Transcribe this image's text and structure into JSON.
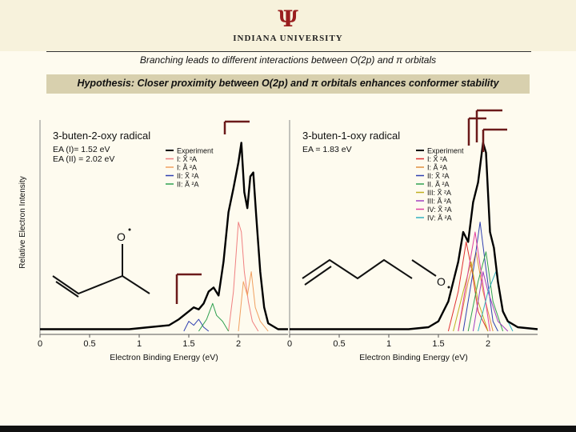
{
  "header": {
    "logo_glyph": "Ψ",
    "university": "INDIANA UNIVERSITY",
    "subtitle": "Branching leads to different interactions between O(2p) and π orbitals",
    "hypothesis": "Hypothesis: Closer proximity between O(2p) and π orbitals enhances conformer stability"
  },
  "colors": {
    "background": "#fefbef",
    "hypothesis_box": "#d8d0ae",
    "brand": "#9a1f1f",
    "bracket": "#6b1a1a"
  },
  "y_axis_label": "Relative Electron Intensity",
  "chart_data": [
    {
      "type": "line",
      "title": "3-buten-2-oxy radical",
      "annotations": [
        "EA (I)= 1.52 eV",
        "EA (II) = 2.02 eV"
      ],
      "xlabel": "Electron Binding Energy (eV)",
      "ylabel": "Relative Electron Intensity",
      "xlim": [
        0,
        2.5
      ],
      "x_ticks": [
        "0",
        "0.5",
        "1",
        "1.5",
        "2"
      ],
      "legend": [
        {
          "label": "Experiment",
          "color": "#000000"
        },
        {
          "label": "I: X̃ ²A",
          "color": "#f08080"
        },
        {
          "label": "I: Ã ²A",
          "color": "#f0a060"
        },
        {
          "label": "II: X̃ ²A",
          "color": "#3040b0"
        },
        {
          "label": "II: Ã ²A",
          "color": "#30a050"
        }
      ],
      "legend_position": "top-right",
      "series": [
        {
          "name": "Experiment",
          "color": "#000000",
          "points": [
            [
              0,
              0.01
            ],
            [
              0.3,
              0.01
            ],
            [
              0.6,
              0.01
            ],
            [
              0.9,
              0.01
            ],
            [
              1.1,
              0.02
            ],
            [
              1.3,
              0.03
            ],
            [
              1.4,
              0.06
            ],
            [
              1.5,
              0.1
            ],
            [
              1.55,
              0.12
            ],
            [
              1.6,
              0.11
            ],
            [
              1.65,
              0.14
            ],
            [
              1.7,
              0.2
            ],
            [
              1.75,
              0.22
            ],
            [
              1.8,
              0.18
            ],
            [
              1.85,
              0.35
            ],
            [
              1.9,
              0.6
            ],
            [
              1.95,
              0.72
            ],
            [
              2.0,
              0.85
            ],
            [
              2.03,
              0.95
            ],
            [
              2.06,
              0.7
            ],
            [
              2.09,
              0.62
            ],
            [
              2.12,
              0.78
            ],
            [
              2.15,
              0.8
            ],
            [
              2.18,
              0.58
            ],
            [
              2.22,
              0.3
            ],
            [
              2.26,
              0.12
            ],
            [
              2.3,
              0.04
            ],
            [
              2.4,
              0.01
            ],
            [
              2.5,
              0.01
            ]
          ]
        },
        {
          "name": "I: X̃ ²A",
          "color": "#f08080",
          "points": [
            [
              1.9,
              0.0
            ],
            [
              1.95,
              0.2
            ],
            [
              2.0,
              0.55
            ],
            [
              2.03,
              0.5
            ],
            [
              2.06,
              0.3
            ],
            [
              2.1,
              0.15
            ],
            [
              2.14,
              0.05
            ],
            [
              2.2,
              0.0
            ]
          ]
        },
        {
          "name": "I: Ã ²A",
          "color": "#f0a060",
          "points": [
            [
              2.0,
              0.0
            ],
            [
              2.05,
              0.25
            ],
            [
              2.09,
              0.18
            ],
            [
              2.13,
              0.3
            ],
            [
              2.17,
              0.12
            ],
            [
              2.22,
              0.05
            ],
            [
              2.3,
              0.0
            ]
          ]
        },
        {
          "name": "II: X̃ ²A",
          "color": "#3040b0",
          "points": [
            [
              1.45,
              0.0
            ],
            [
              1.5,
              0.05
            ],
            [
              1.55,
              0.03
            ],
            [
              1.6,
              0.06
            ],
            [
              1.65,
              0.02
            ],
            [
              1.7,
              0.0
            ]
          ]
        },
        {
          "name": "II: Ã ²A",
          "color": "#30a050",
          "points": [
            [
              1.6,
              0.0
            ],
            [
              1.68,
              0.06
            ],
            [
              1.74,
              0.14
            ],
            [
              1.78,
              0.08
            ],
            [
              1.84,
              0.05
            ],
            [
              1.9,
              0.0
            ]
          ]
        }
      ]
    },
    {
      "type": "line",
      "title": "3-buten-1-oxy radical",
      "annotations": [
        "EA = 1.83 eV"
      ],
      "xlabel": "Electron Binding Energy (eV)",
      "ylabel": "",
      "xlim": [
        0,
        2.5
      ],
      "x_ticks": [
        "0",
        "0.5",
        "1",
        "1.5",
        "2"
      ],
      "legend": [
        {
          "label": "Experiment",
          "color": "#000000"
        },
        {
          "label": "I: X̃ ²A",
          "color": "#e03030"
        },
        {
          "label": "I: Ã ²A",
          "color": "#e09040"
        },
        {
          "label": "II: X̃ ²A",
          "color": "#3040b0"
        },
        {
          "label": "II. Ã ²A",
          "color": "#30a050"
        },
        {
          "label": "III: X̃ ²A",
          "color": "#c0b020"
        },
        {
          "label": "III: Ã ²A",
          "color": "#a040c0"
        },
        {
          "label": "IV: X̃ ²A",
          "color": "#e040a0"
        },
        {
          "label": "IV: Ã ²A",
          "color": "#30b0c0"
        }
      ],
      "legend_position": "top-right",
      "series": [
        {
          "name": "Experiment",
          "color": "#000000",
          "points": [
            [
              0,
              0.01
            ],
            [
              0.5,
              0.01
            ],
            [
              1.0,
              0.01
            ],
            [
              1.2,
              0.01
            ],
            [
              1.4,
              0.02
            ],
            [
              1.5,
              0.05
            ],
            [
              1.6,
              0.15
            ],
            [
              1.7,
              0.35
            ],
            [
              1.75,
              0.5
            ],
            [
              1.8,
              0.45
            ],
            [
              1.85,
              0.65
            ],
            [
              1.9,
              0.75
            ],
            [
              1.95,
              0.95
            ],
            [
              1.98,
              0.9
            ],
            [
              2.02,
              0.5
            ],
            [
              2.06,
              0.42
            ],
            [
              2.1,
              0.25
            ],
            [
              2.15,
              0.1
            ],
            [
              2.2,
              0.05
            ],
            [
              2.3,
              0.02
            ],
            [
              2.5,
              0.01
            ]
          ]
        },
        {
          "name": "I: X̃ ²A",
          "color": "#e03030",
          "points": [
            [
              1.6,
              0.0
            ],
            [
              1.7,
              0.2
            ],
            [
              1.78,
              0.45
            ],
            [
              1.84,
              0.3
            ],
            [
              1.9,
              0.1
            ],
            [
              2.0,
              0.0
            ]
          ]
        },
        {
          "name": "I: Ã ²A",
          "color": "#e09040",
          "points": [
            [
              1.7,
              0.0
            ],
            [
              1.8,
              0.25
            ],
            [
              1.88,
              0.4
            ],
            [
              1.95,
              0.2
            ],
            [
              2.05,
              0.0
            ]
          ]
        },
        {
          "name": "II: X̃ ²A",
          "color": "#3040b0",
          "points": [
            [
              1.75,
              0.0
            ],
            [
              1.85,
              0.3
            ],
            [
              1.92,
              0.55
            ],
            [
              1.97,
              0.35
            ],
            [
              2.05,
              0.05
            ],
            [
              2.1,
              0.0
            ]
          ]
        },
        {
          "name": "II. Ã ²A",
          "color": "#30a050",
          "points": [
            [
              1.8,
              0.0
            ],
            [
              1.9,
              0.25
            ],
            [
              1.98,
              0.4
            ],
            [
              2.05,
              0.15
            ],
            [
              2.15,
              0.0
            ]
          ]
        },
        {
          "name": "III: X̃ ²A",
          "color": "#c0b020",
          "points": [
            [
              1.65,
              0.0
            ],
            [
              1.75,
              0.2
            ],
            [
              1.83,
              0.35
            ],
            [
              1.9,
              0.15
            ],
            [
              2.0,
              0.0
            ]
          ]
        },
        {
          "name": "III: Ã ²A",
          "color": "#a040c0",
          "points": [
            [
              1.85,
              0.0
            ],
            [
              1.95,
              0.3
            ],
            [
              2.0,
              0.2
            ],
            [
              2.1,
              0.05
            ],
            [
              2.2,
              0.0
            ]
          ]
        },
        {
          "name": "IV: X̃ ²A",
          "color": "#e040a0",
          "points": [
            [
              1.7,
              0.0
            ],
            [
              1.8,
              0.3
            ],
            [
              1.87,
              0.5
            ],
            [
              1.93,
              0.3
            ],
            [
              2.02,
              0.0
            ]
          ]
        },
        {
          "name": "IV: Ã ²A",
          "color": "#30b0c0",
          "points": [
            [
              1.9,
              0.0
            ],
            [
              2.0,
              0.2
            ],
            [
              2.08,
              0.3
            ],
            [
              2.15,
              0.1
            ],
            [
              2.25,
              0.0
            ]
          ]
        }
      ]
    }
  ]
}
